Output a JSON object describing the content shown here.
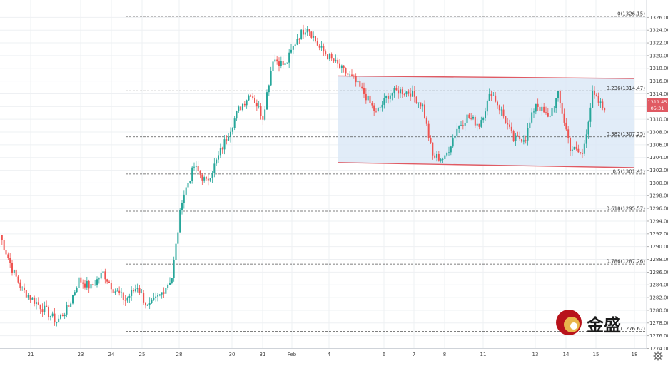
{
  "watermark": {
    "brand_text": "金盛"
  },
  "price_tag": {
    "price": "1311.45",
    "countdown": "05:31",
    "color": "#e05a63"
  },
  "settings_icon": "gear-icon",
  "colors": {
    "up": "#26a69a",
    "down": "#ef5350",
    "channel_line": "#e05a63",
    "channel_fill": "#d9e7f6"
  },
  "chart_data": {
    "type": "candlestick",
    "title": "",
    "xlabel": "",
    "ylabel": "",
    "ylim": [
      1274,
      1328
    ],
    "price_axis_ticks": [
      "1326.00",
      "1324.00",
      "1322.00",
      "1320.00",
      "1318.00",
      "1316.00",
      "1314.00",
      "1312.00",
      "1310.00",
      "1308.00",
      "1306.00",
      "1304.00",
      "1302.00",
      "1300.00",
      "1298.00",
      "1296.00",
      "1294.00",
      "1292.00",
      "1290.00",
      "1288.00",
      "1286.00",
      "1284.00",
      "1282.00",
      "1280.00",
      "1278.00",
      "1276.00",
      "1274.00"
    ],
    "date_axis_ticks": [
      "21",
      "23",
      "24",
      "25",
      "28",
      "30",
      "31",
      "Feb",
      "4",
      "6",
      "7",
      "8",
      "11",
      "13",
      "14",
      "15",
      "18"
    ],
    "fibonacci_levels": [
      {
        "label": "0(1326.15)",
        "price": 1326.15
      },
      {
        "label": "0.236(1314.47)",
        "price": 1314.47
      },
      {
        "label": "0.382(1307.25)",
        "price": 1307.25
      },
      {
        "label": "0.5(1301.41)",
        "price": 1301.41
      },
      {
        "label": "0.618(1295.57)",
        "price": 1295.57
      },
      {
        "label": "0.786(1287.26)",
        "price": 1287.26
      },
      {
        "label": "1(1276.67)",
        "price": 1276.67
      }
    ],
    "channel": {
      "upper": {
        "start_date": "4",
        "start_price": 1316.8,
        "end_date": "18",
        "end_price": 1316.4
      },
      "lower": {
        "start_date": "4",
        "start_price": 1303.2,
        "end_date": "18",
        "end_price": 1302.4
      }
    },
    "series": [
      {
        "values": [
          {
            "date": "21",
            "close": 1291.8
          },
          {
            "date": "21",
            "close": 1286.5
          },
          {
            "date": "21",
            "close": 1283.2
          },
          {
            "date": "21",
            "close": 1281.5
          },
          {
            "date": "23",
            "close": 1279.8
          },
          {
            "date": "23",
            "close": 1278.2
          },
          {
            "date": "23",
            "close": 1280.6
          },
          {
            "date": "23",
            "close": 1284.8
          },
          {
            "date": "24",
            "close": 1283.6
          },
          {
            "date": "24",
            "close": 1285.9
          },
          {
            "date": "24",
            "close": 1283.4
          },
          {
            "date": "24",
            "close": 1281.6
          },
          {
            "date": "25",
            "close": 1283.8
          },
          {
            "date": "25",
            "close": 1280.4
          },
          {
            "date": "25",
            "close": 1282.3
          },
          {
            "date": "25",
            "close": 1285.2
          },
          {
            "date": "28",
            "close": 1297.5
          },
          {
            "date": "28",
            "close": 1302.6
          },
          {
            "date": "28",
            "close": 1300.1
          },
          {
            "date": "28",
            "close": 1303.4
          },
          {
            "date": "30",
            "close": 1307.9
          },
          {
            "date": "30",
            "close": 1311.5
          },
          {
            "date": "30",
            "close": 1314.2
          },
          {
            "date": "30",
            "close": 1310.4
          },
          {
            "date": "31",
            "close": 1319.6
          },
          {
            "date": "31",
            "close": 1318.4
          },
          {
            "date": "31",
            "close": 1322.8
          },
          {
            "date": "31",
            "close": 1324.6
          },
          {
            "date": "Feb",
            "close": 1321.2
          },
          {
            "date": "Feb",
            "close": 1319.4
          },
          {
            "date": "Feb",
            "close": 1317.8
          },
          {
            "date": "Feb",
            "close": 1316.2
          },
          {
            "date": "4",
            "close": 1313.6
          },
          {
            "date": "4",
            "close": 1310.9
          },
          {
            "date": "4",
            "close": 1313.8
          },
          {
            "date": "4",
            "close": 1314.5
          },
          {
            "date": "6",
            "close": 1314.2
          },
          {
            "date": "6",
            "close": 1312.1
          },
          {
            "date": "7",
            "close": 1304.2
          },
          {
            "date": "7",
            "close": 1303.8
          },
          {
            "date": "8",
            "close": 1308.6
          },
          {
            "date": "8",
            "close": 1310.4
          },
          {
            "date": "8",
            "close": 1309.2
          },
          {
            "date": "11",
            "close": 1314.3
          },
          {
            "date": "11",
            "close": 1311.2
          },
          {
            "date": "11",
            "close": 1306.8
          },
          {
            "date": "13",
            "close": 1307.2
          },
          {
            "date": "13",
            "close": 1312.6
          },
          {
            "date": "13",
            "close": 1310.1
          },
          {
            "date": "14",
            "close": 1313.8
          },
          {
            "date": "14",
            "close": 1305.6
          },
          {
            "date": "15",
            "close": 1304.4
          },
          {
            "date": "15",
            "close": 1313.9
          },
          {
            "date": "15",
            "close": 1311.45
          }
        ]
      }
    ],
    "grid": true,
    "legend": "none"
  }
}
